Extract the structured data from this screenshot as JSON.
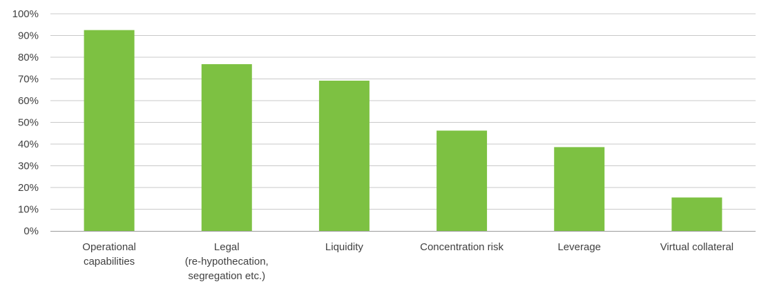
{
  "chart_data": {
    "type": "bar",
    "title": "",
    "xlabel": "",
    "ylabel": "",
    "ylim": [
      0,
      100
    ],
    "y_ticks": [
      "0%",
      "10%",
      "20%",
      "30%",
      "40%",
      "50%",
      "60%",
      "70%",
      "80%",
      "90%",
      "100%"
    ],
    "grid": true,
    "bar_color": "#7dc142",
    "categories": [
      [
        "Operational",
        "capabilities"
      ],
      [
        "Legal",
        "(re-hypothecation,",
        "segregation etc.)"
      ],
      [
        "Liquidity"
      ],
      [
        "Concentration risk"
      ],
      [
        "Leverage"
      ],
      [
        "Virtual collateral"
      ]
    ],
    "values": [
      92.5,
      76.8,
      69.2,
      46.2,
      38.6,
      15.4
    ]
  }
}
